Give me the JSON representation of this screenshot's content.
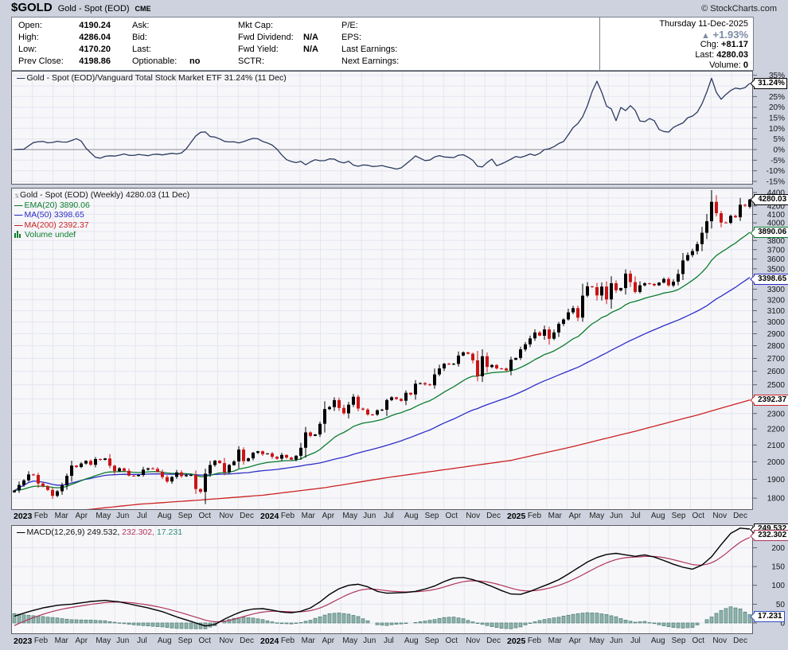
{
  "header": {
    "symbol": "$GOLD",
    "name": "Gold - Spot (EOD)",
    "exchange": "CME",
    "copyright": "© StockCharts.com",
    "quote": {
      "col1": [
        {
          "label": "Open:",
          "value": "4190.24"
        },
        {
          "label": "High:",
          "value": "4286.04"
        },
        {
          "label": "Low:",
          "value": "4170.20"
        },
        {
          "label": "Prev Close:",
          "value": "4198.86"
        }
      ],
      "col2": [
        {
          "label": "Ask:",
          "value": ""
        },
        {
          "label": "Bid:",
          "value": ""
        },
        {
          "label": "Last:",
          "value": ""
        },
        {
          "label": "Optionable:",
          "value": "no"
        }
      ],
      "col3": [
        {
          "label": "Mkt Cap:",
          "value": ""
        },
        {
          "label": "Fwd Dividend:",
          "value": "N/A"
        },
        {
          "label": "Fwd Yield:",
          "value": "N/A"
        },
        {
          "label": "SCTR:",
          "value": ""
        }
      ],
      "col4": [
        {
          "label": "P/E:",
          "value": ""
        },
        {
          "label": "EPS:",
          "value": ""
        },
        {
          "label": "Last Earnings:",
          "value": ""
        },
        {
          "label": "Next Earnings:",
          "value": ""
        }
      ]
    },
    "right": {
      "date": "Thursday 11-Dec-2025",
      "up_arrow": "▲",
      "pct": "+1.93%",
      "chg_label": "Chg:",
      "chg": "+81.17",
      "last_label": "Last:",
      "last": "4280.03",
      "vol_label": "Volume:",
      "vol": "0"
    }
  },
  "x_axis": {
    "labels": [
      "2023",
      "Feb",
      "Mar",
      "Apr",
      "May",
      "Jun",
      "Jul",
      "Aug",
      "Sep",
      "Oct",
      "Nov",
      "Dec",
      "2024",
      "Feb",
      "Mar",
      "Apr",
      "May",
      "Jun",
      "Jul",
      "Aug",
      "Sep",
      "Oct",
      "Nov",
      "Dec",
      "2025",
      "Feb",
      "Mar",
      "Apr",
      "May",
      "Jun",
      "Jul",
      "Aug",
      "Sep",
      "Oct",
      "Nov",
      "Dec"
    ],
    "weeks_total": 155
  },
  "chart_data": [
    {
      "type": "line",
      "name": "ratio-gold-vs-vti",
      "title": "Gold - Spot (EOD)/Vanguard Total Stock Market ETF 31.24% (11 Dec)",
      "last_value_pct": 31.24,
      "ylim": [
        -16.5,
        37.1
      ],
      "yticks": [
        35,
        30,
        25,
        20,
        15,
        10,
        5,
        0,
        -5,
        -10,
        -15
      ],
      "ytick_suffix": "%",
      "anchors_week_pct": [
        [
          0,
          0
        ],
        [
          2,
          0.2
        ],
        [
          4,
          3.3
        ],
        [
          5.7,
          4
        ],
        [
          7.3,
          3
        ],
        [
          9,
          3.9
        ],
        [
          10.7,
          3.3
        ],
        [
          12.3,
          4.5
        ],
        [
          13.2,
          5.3
        ],
        [
          14,
          4
        ],
        [
          14.8,
          1.1
        ],
        [
          15.7,
          -0.8
        ],
        [
          16.8,
          -3.5
        ],
        [
          17.9,
          -4.2
        ],
        [
          18.7,
          -3
        ],
        [
          19.5,
          -3.5
        ],
        [
          20.3,
          -2.6
        ],
        [
          21.2,
          -3.2
        ],
        [
          22.9,
          -2
        ],
        [
          24.5,
          -3
        ],
        [
          26.2,
          -2.2
        ],
        [
          27.8,
          -3
        ],
        [
          29.5,
          -2
        ],
        [
          31.2,
          -2.6
        ],
        [
          32.8,
          -1.7
        ],
        [
          34.5,
          -2.2
        ],
        [
          35.6,
          -0.8
        ],
        [
          36.7,
          2.4
        ],
        [
          37.8,
          6.1
        ],
        [
          38.9,
          8
        ],
        [
          39.7,
          9
        ],
        [
          40.6,
          7
        ],
        [
          41.4,
          5.3
        ],
        [
          42.2,
          6.1
        ],
        [
          43.4,
          4.5
        ],
        [
          44.5,
          3.3
        ],
        [
          45.6,
          4
        ],
        [
          46.7,
          3
        ],
        [
          47.8,
          3.6
        ],
        [
          48.9,
          4.5
        ],
        [
          50,
          5.3
        ],
        [
          50.6,
          5.7
        ],
        [
          51.7,
          4
        ],
        [
          52.8,
          3.3
        ],
        [
          54,
          2.1
        ],
        [
          55.1,
          0
        ],
        [
          56.7,
          -4.5
        ],
        [
          58.9,
          -6.4
        ],
        [
          59.7,
          -4.5
        ],
        [
          60.6,
          -7.6
        ],
        [
          61.4,
          -6.7
        ],
        [
          62.2,
          -5.5
        ],
        [
          63.3,
          -4.5
        ],
        [
          64.4,
          -5.7
        ],
        [
          65.5,
          -4.8
        ],
        [
          66.6,
          -3.9
        ],
        [
          67.7,
          -5.5
        ],
        [
          68.8,
          -6.4
        ],
        [
          70,
          -5.5
        ],
        [
          71,
          -7.3
        ],
        [
          72.2,
          -8
        ],
        [
          73.3,
          -7
        ],
        [
          74.4,
          -7.6
        ],
        [
          75.5,
          -8.3
        ],
        [
          76.6,
          -7.3
        ],
        [
          77.7,
          -8
        ],
        [
          78.8,
          -8.5
        ],
        [
          80.5,
          -9.5
        ],
        [
          82.5,
          -6
        ],
        [
          84,
          -3
        ],
        [
          86.5,
          -5.7
        ],
        [
          88.6,
          -2.6
        ],
        [
          90,
          -3.5
        ],
        [
          92,
          -3.8
        ],
        [
          93.6,
          -2
        ],
        [
          95.8,
          -4.5
        ],
        [
          97.5,
          -9.3
        ],
        [
          98.8,
          -6.4
        ],
        [
          100,
          -4.5
        ],
        [
          101,
          -7.6
        ],
        [
          102.4,
          -6.4
        ],
        [
          104,
          -4.5
        ],
        [
          105.2,
          -3
        ],
        [
          106.2,
          -3.9
        ],
        [
          107.9,
          -2
        ],
        [
          109.3,
          -3
        ],
        [
          111,
          0
        ],
        [
          112.4,
          0.5
        ],
        [
          113,
          1.4
        ],
        [
          113.5,
          3
        ],
        [
          114.6,
          2.7
        ],
        [
          115.4,
          4.9
        ],
        [
          116.3,
          8
        ],
        [
          117.4,
          11.7
        ],
        [
          118,
          12.3
        ],
        [
          119,
          15.5
        ],
        [
          120.2,
          21.7
        ],
        [
          121,
          27.4
        ],
        [
          122.1,
          32.7
        ],
        [
          122.9,
          27.7
        ],
        [
          123.5,
          23.6
        ],
        [
          124,
          20.5
        ],
        [
          124.3,
          23.2
        ],
        [
          125.2,
          18
        ],
        [
          126,
          13.6
        ],
        [
          126.6,
          21.7
        ],
        [
          127.4,
          18
        ],
        [
          128.5,
          18.6
        ],
        [
          129.1,
          21.1
        ],
        [
          129.9,
          19.2
        ],
        [
          130.7,
          13.6
        ],
        [
          131.9,
          13
        ],
        [
          133.2,
          14.9
        ],
        [
          134,
          13.6
        ],
        [
          134.6,
          10.5
        ],
        [
          135.2,
          9
        ],
        [
          136.8,
          8
        ],
        [
          137.3,
          8.6
        ],
        [
          138.5,
          11.7
        ],
        [
          139.5,
          11.5
        ],
        [
          140.2,
          13
        ],
        [
          141.2,
          15.5
        ],
        [
          142,
          15.8
        ],
        [
          143.2,
          18
        ],
        [
          143.7,
          20.5
        ],
        [
          144.4,
          23.1
        ],
        [
          145.4,
          29.9
        ],
        [
          146,
          33.6
        ],
        [
          146.6,
          29.2
        ],
        [
          147.7,
          23
        ],
        [
          148.8,
          25.6
        ],
        [
          149.7,
          27.4
        ],
        [
          150.5,
          28.6
        ],
        [
          151.3,
          29.2
        ],
        [
          152.4,
          28.2
        ],
        [
          153,
          29.2
        ],
        [
          153.6,
          30.7
        ],
        [
          154,
          31.24
        ]
      ]
    },
    {
      "type": "candlestick",
      "name": "gold-weekly-price",
      "scale": "log",
      "legend": {
        "icon": "↑↓",
        "title": "Gold - Spot (EOD) (Weekly) 4280.03 (11 Dec)",
        "ema": "EMA(20) 3890.06",
        "ma50": "MA(50) 3398.65",
        "ma200": "MA(200) 2392.37",
        "volume": "Volume undef"
      },
      "last_close": 4280.03,
      "ylim": [
        1739,
        4429
      ],
      "yticks": [
        1800,
        1900,
        2000,
        2100,
        2200,
        2300,
        2400,
        2500,
        2600,
        2700,
        2800,
        2900,
        3000,
        3100,
        3200,
        3300,
        3400,
        3500,
        3600,
        3700,
        3800,
        3900,
        4000,
        4100,
        4200,
        4300,
        4400
      ],
      "weekly_close": [
        1840,
        1870,
        1895,
        1928,
        1925,
        1878,
        1862,
        1843,
        1812,
        1836,
        1868,
        1920,
        1978,
        1970,
        1990,
        2005,
        1983,
        2016,
        2011,
        2019,
        1977,
        1946,
        1962,
        1948,
        1921,
        1919,
        1925,
        1955,
        1962,
        1959,
        1942,
        1913,
        1889,
        1914,
        1939,
        1918,
        1924,
        1925,
        1848,
        1833,
        1932,
        1981,
        2006,
        1992,
        1940,
        1981,
        2002,
        2072,
        2004,
        2020,
        2053,
        2062,
        2045,
        2049,
        2029,
        2018,
        2040,
        2024,
        2013,
        2035,
        2083,
        2178,
        2156,
        2165,
        2233,
        2330,
        2344,
        2392,
        2338,
        2302,
        2360,
        2415,
        2334,
        2327,
        2294,
        2293,
        2322,
        2326,
        2392,
        2411,
        2400,
        2387,
        2443,
        2431,
        2508,
        2512,
        2503,
        2497,
        2577,
        2622,
        2658,
        2654,
        2657,
        2722,
        2747,
        2736,
        2684,
        2563,
        2716,
        2633,
        2648,
        2622,
        2621,
        2606,
        2689,
        2703,
        2771,
        2812,
        2861,
        2910,
        2883,
        2936,
        2858,
        2910,
        2984,
        3022,
        3085,
        3123,
        3038,
        3238,
        3327,
        3319,
        3240,
        3325,
        3203,
        3357,
        3289,
        3310,
        3452,
        3368,
        3274,
        3337,
        3356,
        3350,
        3337,
        3363,
        3398,
        3336,
        3372,
        3448,
        3587,
        3643,
        3685,
        3760,
        3886,
        4018,
        4251,
        4113,
        4003,
        4000,
        4082,
        4065,
        4215,
        4204,
        4280.03
      ],
      "last_week_ohlc": {
        "open": 4190.24,
        "high": 4286.04,
        "low": 4170.2,
        "close": 4280.03
      },
      "high_override": {
        "146": 4398
      },
      "overlays": [
        {
          "name": "EMA(20)",
          "method": "ema",
          "period": 20,
          "color_key": "ema20",
          "last": 3890.06
        },
        {
          "name": "MA(50)",
          "method": "sma",
          "period": 50,
          "color_key": "ma50",
          "last": 3398.65
        },
        {
          "name": "MA(200)",
          "method": "anchors",
          "color_key": "ma200",
          "last": 2392.37,
          "anchors_week_value": [
            [
              0,
              1680
            ],
            [
              6,
              1710
            ],
            [
              13,
              1735
            ],
            [
              26,
              1768
            ],
            [
              39,
              1790
            ],
            [
              52,
              1815
            ],
            [
              65,
              1855
            ],
            [
              78,
              1910
            ],
            [
              91,
              1958
            ],
            [
              104,
              2008
            ],
            [
              117,
              2090
            ],
            [
              130,
              2185
            ],
            [
              143,
              2290
            ],
            [
              154,
              2392.37
            ]
          ]
        }
      ]
    },
    {
      "type": "line+histogram",
      "name": "macd",
      "legend": {
        "main": "MACD(12,26,9) 249.532,",
        "signal": "232.302,",
        "hist": "17.231"
      },
      "values": [
        249.532,
        232.302,
        17.231
      ],
      "ylim": [
        -29.6,
        260.0
      ],
      "yticks": [
        200,
        150,
        100,
        50,
        0
      ],
      "macd_anchors_week_value": [
        [
          0,
          18
        ],
        [
          3,
          30
        ],
        [
          6,
          40
        ],
        [
          9,
          47
        ],
        [
          12,
          50
        ],
        [
          16,
          57
        ],
        [
          19,
          60
        ],
        [
          22,
          56
        ],
        [
          25,
          48
        ],
        [
          28,
          40
        ],
        [
          31,
          30
        ],
        [
          34,
          16
        ],
        [
          37,
          4
        ],
        [
          39,
          -4
        ],
        [
          40,
          -8
        ],
        [
          42,
          -4
        ],
        [
          44,
          10
        ],
        [
          46,
          22
        ],
        [
          48,
          32
        ],
        [
          50,
          37
        ],
        [
          52,
          38
        ],
        [
          54,
          34
        ],
        [
          56,
          29
        ],
        [
          58,
          27
        ],
        [
          60,
          31
        ],
        [
          62,
          40
        ],
        [
          64,
          56
        ],
        [
          66,
          76
        ],
        [
          68,
          91
        ],
        [
          70,
          100
        ],
        [
          72,
          103
        ],
        [
          74,
          96
        ],
        [
          76,
          84
        ],
        [
          78,
          79
        ],
        [
          80,
          80
        ],
        [
          82,
          81
        ],
        [
          84,
          84
        ],
        [
          86,
          90
        ],
        [
          88,
          98
        ],
        [
          90,
          110
        ],
        [
          92,
          119
        ],
        [
          94,
          121
        ],
        [
          96,
          115
        ],
        [
          98,
          107
        ],
        [
          100,
          97
        ],
        [
          102,
          86
        ],
        [
          104,
          77
        ],
        [
          106,
          76
        ],
        [
          108,
          84
        ],
        [
          110,
          94
        ],
        [
          112,
          104
        ],
        [
          114,
          115
        ],
        [
          116,
          130
        ],
        [
          118,
          146
        ],
        [
          120,
          162
        ],
        [
          122,
          174
        ],
        [
          124,
          182
        ],
        [
          126,
          185
        ],
        [
          128,
          181
        ],
        [
          130,
          177
        ],
        [
          132,
          181
        ],
        [
          134,
          175
        ],
        [
          136,
          166
        ],
        [
          138,
          156
        ],
        [
          140,
          148
        ],
        [
          142,
          143
        ],
        [
          144,
          154
        ],
        [
          146,
          176
        ],
        [
          148,
          208
        ],
        [
          150,
          238
        ],
        [
          152,
          252
        ],
        [
          154,
          249.53
        ]
      ],
      "signal_rule": "EMA(9) of MACD line",
      "histogram_rule": "MACD minus signal"
    }
  ],
  "callouts": [
    {
      "panel": "ratio",
      "value": 31.24,
      "text": "31.24%",
      "color": "#000000"
    },
    {
      "panel": "main",
      "value": 4280.03,
      "text": "4280.03",
      "color": "#000000"
    },
    {
      "panel": "main",
      "value": 3890.06,
      "text": "3890.06",
      "color": "#0a7d2c"
    },
    {
      "panel": "main",
      "value": 3398.65,
      "text": "3398.65",
      "color": "#2e2ec8"
    },
    {
      "panel": "main",
      "value": 2392.37,
      "text": "2392.37",
      "color": "#cc2222"
    },
    {
      "panel": "macd",
      "value": 249.532,
      "text": "249.532",
      "color": "#000000"
    },
    {
      "panel": "macd",
      "value": 232.302,
      "text": "232.302",
      "color": "#b03558"
    },
    {
      "panel": "macd",
      "value": 17.231,
      "text": "17.231",
      "color": "#3050c0"
    }
  ],
  "colors": {
    "ratio_line": "#2b3a5f",
    "candle_up": "#000000",
    "candle_down": "#cc1414",
    "ema20": "#0a7d2c",
    "ma50": "#2e2ec8",
    "ma200": "#cc2222",
    "macd_line": "#000000",
    "macd_signal": "#b03558",
    "hist_fill": "#8fb3ab",
    "hist_stroke": "#4d7d74",
    "hist_label": "#2e8b74",
    "change_up": "#7c8ca4",
    "zero_line": "#8a8a92",
    "grid": "#e4e6f0",
    "plot_bg": "#f7f7fa",
    "panel_border": "#5c5c66"
  }
}
